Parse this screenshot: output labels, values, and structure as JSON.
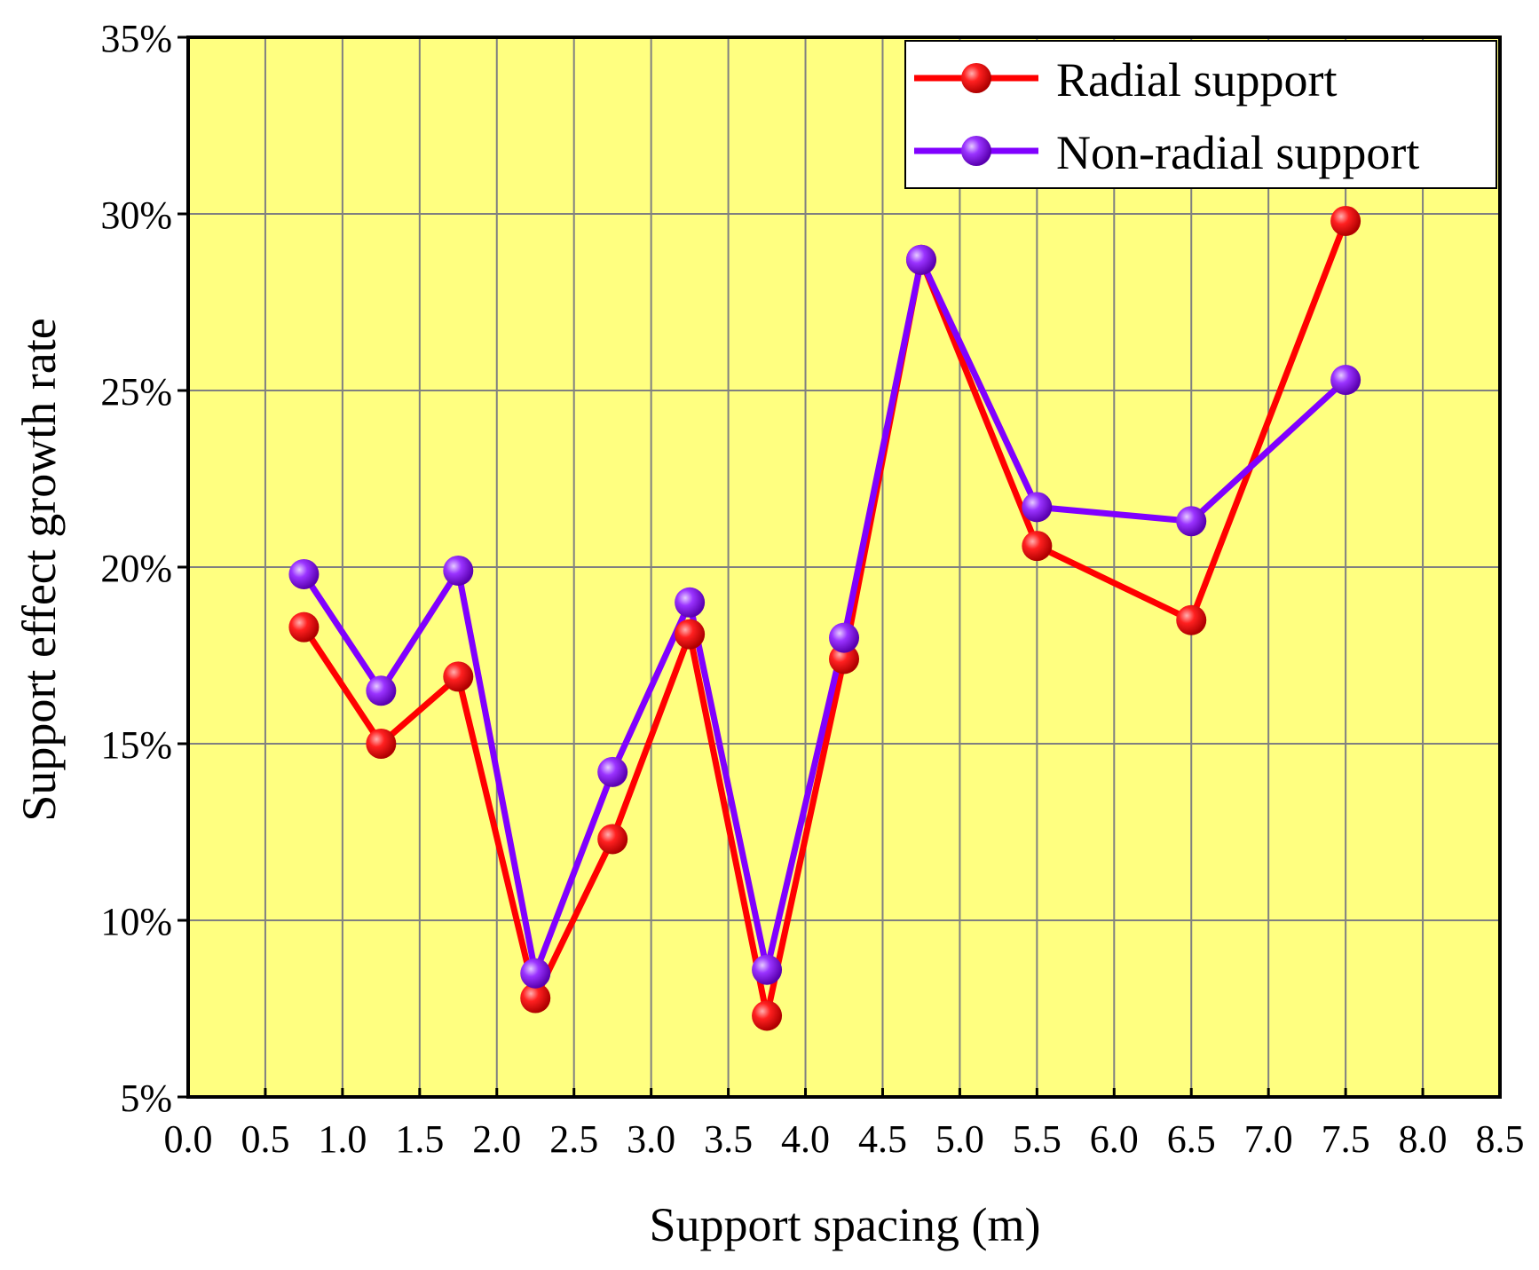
{
  "chart_data": {
    "type": "line",
    "title": "",
    "xlabel": "Support spacing (m)",
    "ylabel": "Support effect growth rate",
    "xlim": [
      0.0,
      8.5
    ],
    "ylim": [
      5,
      35
    ],
    "x_ticks": [
      "0.0",
      "0.5",
      "1.0",
      "1.5",
      "2.0",
      "2.5",
      "3.0",
      "3.5",
      "4.0",
      "4.5",
      "5.0",
      "5.5",
      "6.0",
      "6.5",
      "7.0",
      "7.5",
      "8.0",
      "8.5"
    ],
    "y_ticks": [
      "5%",
      "10%",
      "15%",
      "20%",
      "25%",
      "30%",
      "35%"
    ],
    "grid": true,
    "background": "#ffff80",
    "legend_position": "top-right",
    "series": [
      {
        "name": "Radial support",
        "color": "#ff0000",
        "x": [
          0.75,
          1.25,
          1.75,
          2.25,
          2.75,
          3.25,
          3.75,
          4.25,
          4.75,
          5.5,
          6.5,
          7.5
        ],
        "values": [
          18.3,
          15.0,
          16.9,
          7.8,
          12.3,
          18.1,
          7.3,
          17.4,
          28.7,
          20.6,
          18.5,
          29.8
        ]
      },
      {
        "name": "Non-radial support",
        "color": "#8000ff",
        "x": [
          0.75,
          1.25,
          1.75,
          2.25,
          2.75,
          3.25,
          3.75,
          4.25,
          4.75,
          5.5,
          6.5,
          7.5
        ],
        "values": [
          19.8,
          16.5,
          19.9,
          8.5,
          14.2,
          19.0,
          8.6,
          18.0,
          28.7,
          21.7,
          21.3,
          25.3
        ]
      }
    ]
  }
}
